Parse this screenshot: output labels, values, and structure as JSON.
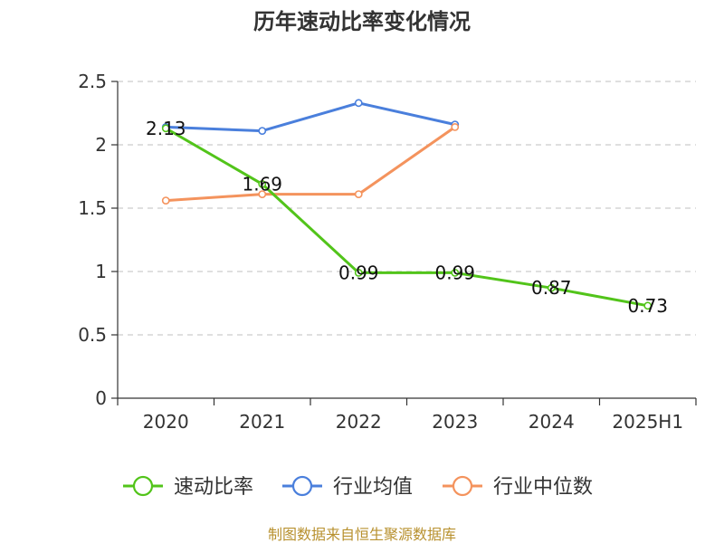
{
  "chart_data": {
    "type": "line",
    "title": "历年速动比率变化情况",
    "categories": [
      "2020",
      "2021",
      "2022",
      "2023",
      "2024",
      "2025H1"
    ],
    "ylim": [
      0,
      2.5
    ],
    "yticks": [
      "0",
      "0.5",
      "1",
      "1.5",
      "2",
      "2.5"
    ],
    "grid": true,
    "legend_position": "bottom",
    "series": [
      {
        "name": "速动比率",
        "color": "#52c41a",
        "values": [
          2.13,
          1.69,
          0.99,
          0.99,
          0.87,
          0.73
        ],
        "labels": [
          "2.13",
          "1.69",
          "0.99",
          "0.99",
          "0.87",
          "0.73"
        ]
      },
      {
        "name": "行业均值",
        "color": "#4a7fdc",
        "values": [
          2.14,
          2.11,
          2.33,
          2.16,
          null,
          null
        ]
      },
      {
        "name": "行业中位数",
        "color": "#f4935d",
        "values": [
          1.56,
          1.61,
          1.61,
          2.14,
          null,
          null
        ]
      }
    ]
  },
  "source": "制图数据来自恒生聚源数据库"
}
